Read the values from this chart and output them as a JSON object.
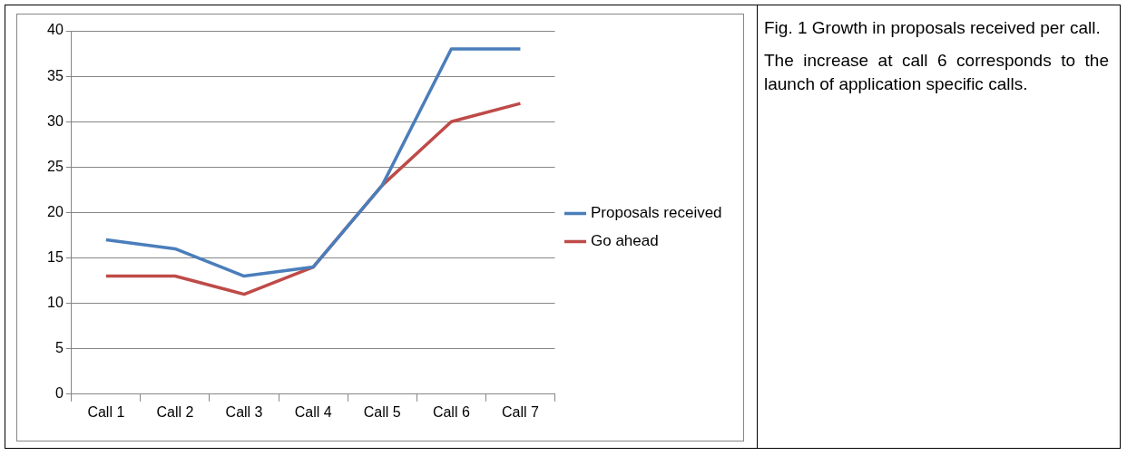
{
  "chart_data": {
    "type": "line",
    "title": "Fig. 1 Growth in proposals received per call.",
    "annotations": [
      "The increase at call 6 corresponds to the launch of application specific calls."
    ],
    "categories": [
      "Call 1",
      "Call 2",
      "Call 3",
      "Call 4",
      "Call 5",
      "Call 6",
      "Call 7"
    ],
    "series": [
      {
        "name": "Proposals received",
        "color": "#4a7ebb",
        "values": [
          17,
          16,
          13,
          14,
          23,
          38,
          38
        ]
      },
      {
        "name": "Go ahead",
        "color": "#be4b48",
        "values": [
          13,
          13,
          11,
          14,
          23,
          30,
          32
        ]
      }
    ],
    "ylim": [
      0,
      40
    ],
    "yticks": [
      0,
      5,
      10,
      15,
      20,
      25,
      30,
      35,
      40
    ],
    "grid": "y",
    "legend": "right",
    "marker": "none",
    "line_style": "solid"
  }
}
